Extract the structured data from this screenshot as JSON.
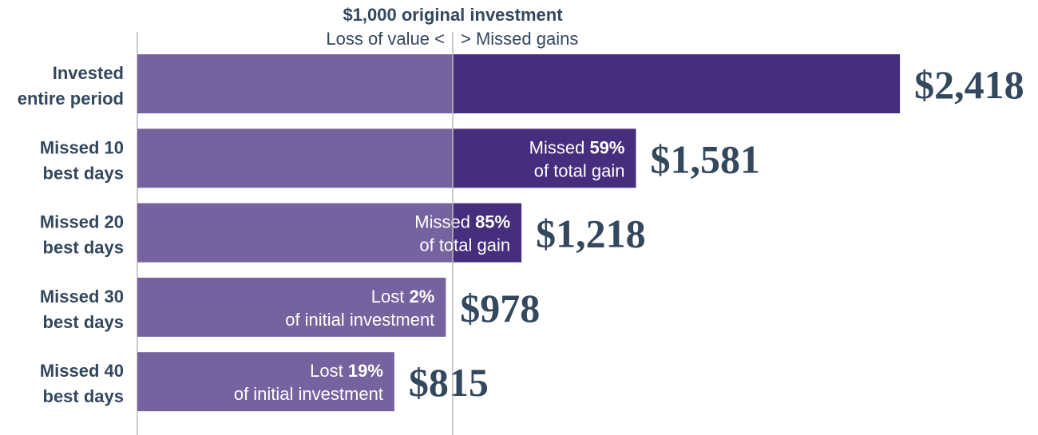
{
  "chart_data": {
    "type": "bar",
    "orientation": "horizontal",
    "title": "$1,000 original investment",
    "reference_value": 1000,
    "left_label": "Loss of value <",
    "right_label": "> Missed gains",
    "xlim": [
      0,
      2418
    ],
    "colors": {
      "base": "#76629e",
      "gain": "#472d7d",
      "text": "#33475d",
      "line": "#bbbbbb"
    },
    "categories": [
      [
        "Invested",
        "entire period"
      ],
      [
        "Missed 10",
        "best days"
      ],
      [
        "Missed 20",
        "best days"
      ],
      [
        "Missed 30",
        "best days"
      ],
      [
        "Missed 40",
        "best days"
      ]
    ],
    "values": [
      2418,
      1581,
      1218,
      978,
      815
    ],
    "value_labels": [
      "$2,418",
      "$1,581",
      "$1,218",
      "$978",
      "$815"
    ],
    "annotations": [
      null,
      {
        "prefix": "Missed ",
        "pct": "59%",
        "line2": "of total gain"
      },
      {
        "prefix": "Missed ",
        "pct": "85%",
        "line2": "of total gain"
      },
      {
        "prefix": "Lost ",
        "pct": "2%",
        "line2": "of initial investment"
      },
      {
        "prefix": "Lost ",
        "pct": "19%",
        "line2": "of initial investment"
      }
    ]
  }
}
